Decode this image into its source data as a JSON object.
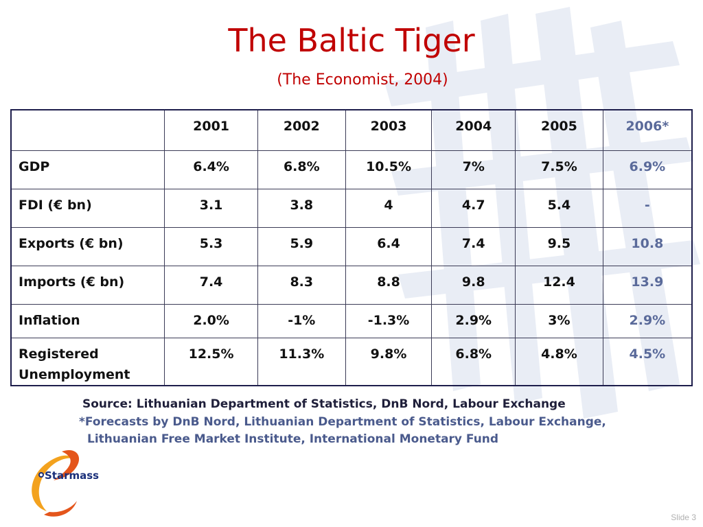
{
  "slide": {
    "title": "The Baltic Tiger",
    "subtitle": "(The Economist, 2004)",
    "slide_number": "Slide 3"
  },
  "table": {
    "corner": "",
    "years": [
      "2001",
      "2002",
      "2003",
      "2004",
      "2005",
      "2006*"
    ],
    "rows": [
      {
        "label": "GDP",
        "values": [
          "6.4%",
          "6.8%",
          "10.5%",
          "7%",
          "7.5%",
          "6.9%"
        ]
      },
      {
        "label": "FDI (€ bn)",
        "values": [
          "3.1",
          "3.8",
          "4",
          "4.7",
          "5.4",
          "-"
        ]
      },
      {
        "label": "Exports (€ bn)",
        "values": [
          "5.3",
          "5.9",
          "6.4",
          "7.4",
          "9.5",
          "10.8"
        ]
      },
      {
        "label": "Imports (€ bn)",
        "values": [
          "7.4",
          "8.3",
          "8.8",
          "9.8",
          "12.4",
          "13.9"
        ]
      },
      {
        "label": "Inflation",
        "values": [
          "2.0%",
          "-1%",
          "-1.3%",
          "2.9%",
          "3%",
          "2.9%"
        ]
      },
      {
        "label_line1": "Registered",
        "label_line2": "Unemployment",
        "values": [
          "12.5%",
          "11.3%",
          "9.8%",
          "6.8%",
          "4.8%",
          "4.5%"
        ]
      }
    ]
  },
  "notes": {
    "source": "Source: Lithuanian Department of Statistics, DnB Nord, Labour Exchange",
    "forecast_line1": "*Forecasts by DnB Nord, Lithuanian Department of Statistics, Labour Exchange,",
    "forecast_line2": "Lithuanian Free Market Institute, International Monetary Fund"
  },
  "logo": {
    "text": "Starmass",
    "icon": "starmass-swirl-logo"
  },
  "colors": {
    "title": "#c00000",
    "forecast_column": "#5a6a9a",
    "table_border": "#1d1d4b",
    "watermark": "#e8ecf4"
  }
}
